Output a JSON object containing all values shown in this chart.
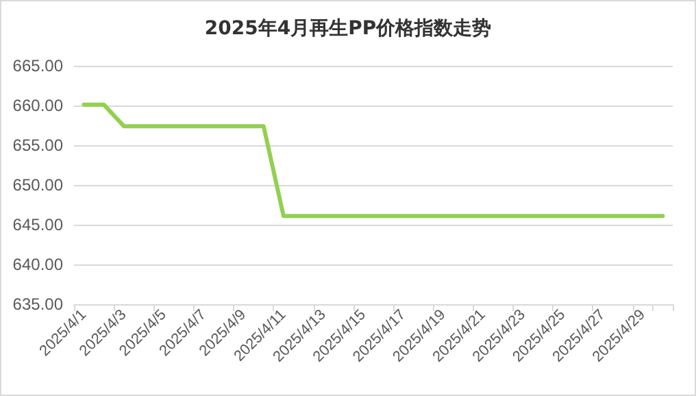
{
  "chart_data": {
    "type": "line",
    "title": "2025年4月再生PP价格指数走势",
    "categories": [
      "2025/4/1",
      null,
      "2025/4/3",
      null,
      "2025/4/5",
      null,
      "2025/4/7",
      null,
      "2025/4/9",
      null,
      "2025/4/11",
      null,
      "2025/4/13",
      null,
      "2025/4/15",
      null,
      "2025/4/17",
      null,
      "2025/4/19",
      null,
      "2025/4/21",
      null,
      "2025/4/23",
      null,
      "2025/4/25",
      null,
      "2025/4/27",
      null,
      "2025/4/29",
      null
    ],
    "series": [
      {
        "color": "#92d050",
        "values": [
          660.1,
          660.1,
          657.4,
          657.4,
          657.4,
          657.4,
          657.4,
          657.4,
          657.4,
          657.4,
          646.1,
          646.1,
          646.1,
          646.1,
          646.1,
          646.1,
          646.1,
          646.1,
          646.1,
          646.1,
          646.1,
          646.1,
          646.1,
          646.1,
          646.1,
          646.1,
          646.1,
          646.1,
          646.1,
          646.1
        ]
      }
    ],
    "ylim": [
      635,
      665
    ],
    "yticks": [
      {
        "value": 635,
        "label": "635.00"
      },
      {
        "value": 640,
        "label": "640.00"
      },
      {
        "value": 645,
        "label": "645.00"
      },
      {
        "value": 650,
        "label": "650.00"
      },
      {
        "value": 655,
        "label": "655.00"
      },
      {
        "value": 660,
        "label": "660.00"
      },
      {
        "value": 665,
        "label": "665.00"
      }
    ],
    "grid": "y",
    "marker": "none",
    "line_style": "solid"
  }
}
